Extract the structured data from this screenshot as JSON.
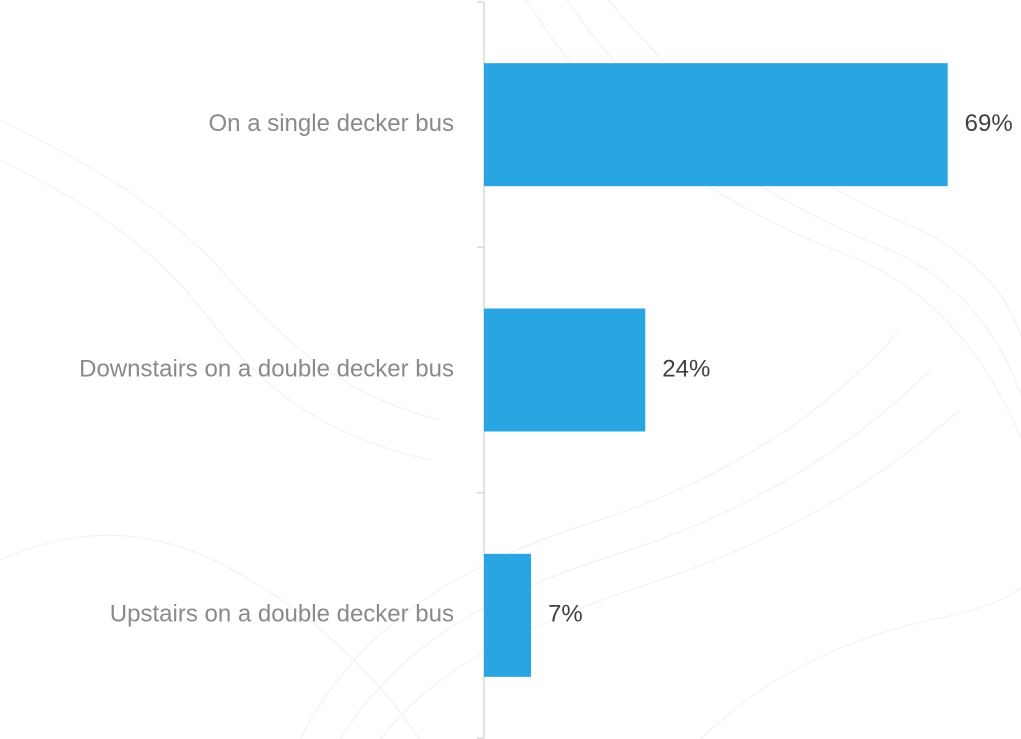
{
  "chart_data": {
    "type": "bar",
    "orientation": "horizontal",
    "categories": [
      "On a single decker bus",
      "Downstairs on a double decker bus",
      "Upstairs on a double decker bus"
    ],
    "values": [
      69,
      24,
      7
    ],
    "value_labels": [
      "69%",
      "24%",
      "7%"
    ],
    "unit": "%",
    "xlim": [
      0,
      100
    ],
    "grid": false,
    "legend": "none",
    "colors": {
      "bar": "#29A6E1",
      "axis": "#d9d9d9",
      "category_text": "#8a8a8a",
      "value_text": "#404040"
    }
  }
}
